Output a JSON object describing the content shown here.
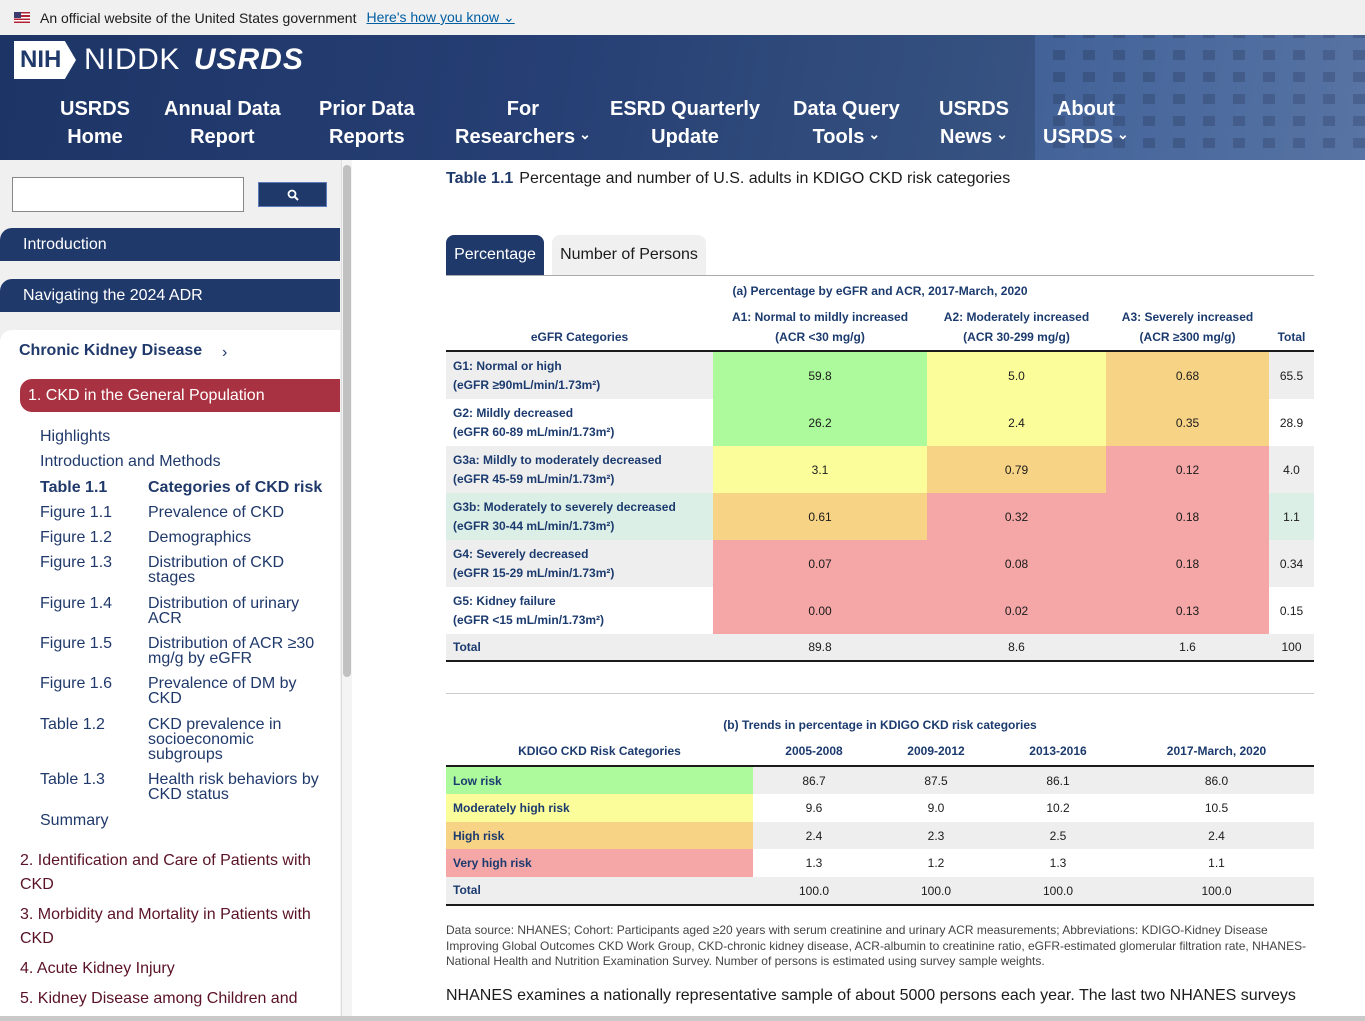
{
  "gov_banner": {
    "text": "An official website of the United States government",
    "link": "Here's how you know"
  },
  "brand": {
    "nih": "NIH",
    "niddk": "NIDDK",
    "usrds": "USRDS"
  },
  "nav": [
    {
      "line1": "USRDS",
      "line2": "Home",
      "chevron": false
    },
    {
      "line1": "Annual Data",
      "line2": "Report",
      "chevron": false
    },
    {
      "line1": "Prior Data",
      "line2": "Reports",
      "chevron": false
    },
    {
      "line1": "For",
      "line2": "Researchers",
      "chevron": true
    },
    {
      "line1": "ESRD Quarterly",
      "line2": "Update",
      "chevron": false
    },
    {
      "line1": "Data Query",
      "line2": "Tools",
      "chevron": true
    },
    {
      "line1": "USRDS",
      "line2": "News",
      "chevron": true
    },
    {
      "line1": "About",
      "line2": "USRDS",
      "chevron": true
    }
  ],
  "sidebar": {
    "search_placeholder": "",
    "introduction": "Introduction",
    "navigating": "Navigating the 2024 ADR",
    "ckd_section": "Chronic Kidney Disease",
    "active_chapter": "1. CKD in the General Population",
    "sublinks": [
      {
        "label": "Highlights"
      },
      {
        "label": "Introduction and Methods"
      },
      {
        "id": "Table 1.1",
        "label": "Categories of CKD risk",
        "current": true
      },
      {
        "id": "Figure 1.1",
        "label": "Prevalence of CKD"
      },
      {
        "id": "Figure 1.2",
        "label": "Demographics"
      },
      {
        "id": "Figure 1.3",
        "label": "Distribution of CKD stages"
      },
      {
        "id": "Figure 1.4",
        "label": "Distribution of urinary ACR"
      },
      {
        "id": "Figure 1.5",
        "label": "Distribution of ACR ≥30 mg/g by eGFR"
      },
      {
        "id": "Figure 1.6",
        "label": "Prevalence of DM by CKD"
      },
      {
        "id": "Table 1.2",
        "label": "CKD prevalence in socioeconomic subgroups"
      },
      {
        "id": "Table 1.3",
        "label": "Health risk behaviors by CKD status"
      },
      {
        "label": "Summary"
      }
    ],
    "chapters": [
      "2. Identification and Care of Patients with CKD",
      "3. Morbidity and Mortality in Patients with CKD",
      "4. Acute Kidney Injury",
      "5. Kidney Disease among Children and"
    ]
  },
  "main": {
    "table_id": "Table 1.1",
    "table_title": "Percentage and number of U.S. adults in KDIGO CKD risk categories",
    "tabs": [
      "Percentage",
      "Number of Persons"
    ],
    "table_a": {
      "caption": "(a) Percentage by eGFR and ACR, 2017-March, 2020",
      "headers": {
        "egfr": "eGFR Categories",
        "a1_l1": "A1: Normal to mildly increased",
        "a1_l2": "(ACR <30 mg/g)",
        "a2_l1": "A2: Moderately increased",
        "a2_l2": "(ACR 30-299 mg/g)",
        "a3_l1": "A3: Severely increased",
        "a3_l2": "(ACR ≥300 mg/g)",
        "total": "Total"
      },
      "rows": [
        {
          "l1": "G1: Normal or high",
          "l2": "(eGFR ≥90mL/min/1.73m²)",
          "a1": "59.8",
          "a2": "5.0",
          "a3": "0.68",
          "total": "65.5",
          "c1": "green",
          "c2": "yellow",
          "c3": "orange"
        },
        {
          "l1": "G2: Mildly decreased",
          "l2": "(eGFR 60-89 mL/min/1.73m²)",
          "a1": "26.2",
          "a2": "2.4",
          "a3": "0.35",
          "total": "28.9",
          "c1": "green",
          "c2": "yellow",
          "c3": "orange"
        },
        {
          "l1": "G3a: Mildly to moderately decreased",
          "l2": "(eGFR 45-59 mL/min/1.73m²)",
          "a1": "3.1",
          "a2": "0.79",
          "a3": "0.12",
          "total": "4.0",
          "c1": "yellow",
          "c2": "orange",
          "c3": "red"
        },
        {
          "l1": "G3b: Moderately to severely decreased",
          "l2": "(eGFR 30-44 mL/min/1.73m²)",
          "a1": "0.61",
          "a2": "0.32",
          "a3": "0.18",
          "total": "1.1",
          "c1": "orange",
          "c2": "red",
          "c3": "red"
        },
        {
          "l1": "G4: Severely decreased",
          "l2": "(eGFR 15-29 mL/min/1.73m²)",
          "a1": "0.07",
          "a2": "0.08",
          "a3": "0.18",
          "total": "0.34",
          "c1": "red",
          "c2": "red",
          "c3": "red"
        },
        {
          "l1": "G5: Kidney failure",
          "l2": "(eGFR <15 mL/min/1.73m²)",
          "a1": "0.00",
          "a2": "0.02",
          "a3": "0.13",
          "total": "0.15",
          "c1": "red",
          "c2": "red",
          "c3": "red"
        }
      ],
      "total_row": {
        "label": "Total",
        "a1": "89.8",
        "a2": "8.6",
        "a3": "1.6",
        "total": "100"
      }
    },
    "table_b": {
      "caption": "(b) Trends in percentage in KDIGO CKD risk categories",
      "headers": [
        "KDIGO CKD Risk Categories",
        "2005-2008",
        "2009-2012",
        "2013-2016",
        "2017-March, 2020"
      ],
      "rows": [
        {
          "label": "Low risk",
          "color": "green",
          "values": [
            "86.7",
            "87.5",
            "86.1",
            "86.0"
          ]
        },
        {
          "label": "Moderately high risk",
          "color": "yellow",
          "values": [
            "9.6",
            "9.0",
            "10.2",
            "10.5"
          ]
        },
        {
          "label": "High risk",
          "color": "orange",
          "values": [
            "2.4",
            "2.3",
            "2.5",
            "2.4"
          ]
        },
        {
          "label": "Very high risk",
          "color": "red",
          "values": [
            "1.3",
            "1.2",
            "1.3",
            "1.1"
          ]
        }
      ],
      "total_row": {
        "label": "Total",
        "values": [
          "100.0",
          "100.0",
          "100.0",
          "100.0"
        ]
      }
    },
    "notes": "Data source: NHANES; Cohort: Participants aged ≥20 years with serum creatinine and urinary ACR measurements; Abbreviations: KDIGO-Kidney Disease Improving Global Outcomes CKD Work Group, CKD-chronic kidney disease, ACR-albumin to creatinine ratio, eGFR-estimated glomerular filtration rate, NHANES-National Health and Nutrition Examination Survey. Number of persons is estimated using survey sample weights.",
    "paragraph": "NHANES examines a nationally representative sample of about 5000 persons each year. The last two NHANES surveys"
  },
  "colors": {
    "navy": "#20396b",
    "green": "#acfa9c",
    "yellow": "#fbfd9b",
    "orange": "#f7d385",
    "red": "#f5a6a6",
    "mint": "#dcefe6",
    "stripe": "#eeeeee",
    "active_chapter": "#a83241"
  }
}
